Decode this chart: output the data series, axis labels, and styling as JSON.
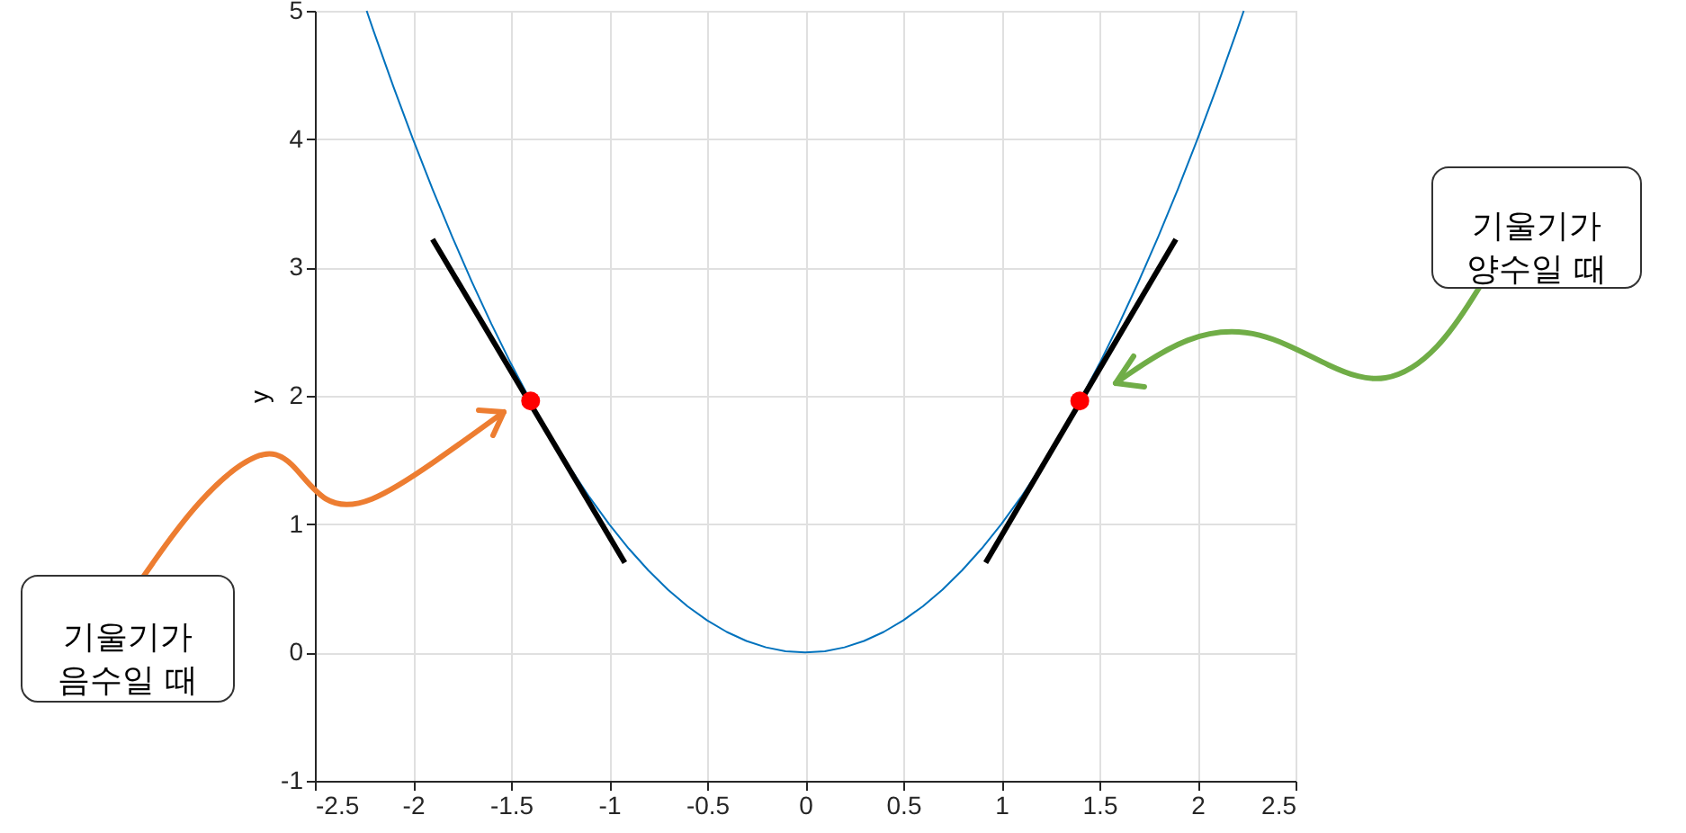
{
  "chart_data": {
    "type": "line",
    "ylabel": "y",
    "xlim": [
      -2.5,
      2.5
    ],
    "ylim": [
      -1,
      5
    ],
    "xticks": [
      -2.5,
      -2,
      -1.5,
      -1,
      -0.5,
      0,
      0.5,
      1,
      1.5,
      2,
      2.5
    ],
    "yticks": [
      -1,
      0,
      1,
      2,
      3,
      4,
      5
    ],
    "grid": true,
    "marker": "none",
    "line_style": "solid",
    "series": [
      {
        "color": "#0072bd",
        "x": [
          -2.236,
          -2.2,
          -2.1,
          -2.0,
          -1.9,
          -1.8,
          -1.7,
          -1.6,
          -1.5,
          -1.4,
          -1.3,
          -1.2,
          -1.1,
          -1.0,
          -0.9,
          -0.8,
          -0.7,
          -0.6,
          -0.5,
          -0.4,
          -0.3,
          -0.2,
          -0.1,
          0,
          0.1,
          0.2,
          0.3,
          0.4,
          0.5,
          0.6,
          0.7,
          0.8,
          0.9,
          1.0,
          1.1,
          1.2,
          1.3,
          1.4,
          1.5,
          1.6,
          1.7,
          1.8,
          1.9,
          2.0,
          2.1,
          2.2,
          2.236
        ],
        "values": [
          5.0,
          4.84,
          4.41,
          4.0,
          3.61,
          3.24,
          2.89,
          2.56,
          2.25,
          1.96,
          1.69,
          1.44,
          1.21,
          1.0,
          0.81,
          0.64,
          0.49,
          0.36,
          0.25,
          0.16,
          0.09,
          0.04,
          0.01,
          0,
          0.01,
          0.04,
          0.09,
          0.16,
          0.25,
          0.36,
          0.49,
          0.64,
          0.81,
          1.0,
          1.21,
          1.44,
          1.69,
          1.96,
          2.25,
          2.56,
          2.89,
          3.24,
          3.61,
          4.0,
          4.41,
          4.84,
          5.0
        ]
      },
      {
        "color": "#000000",
        "x": [
          -1.9,
          -0.92
        ],
        "values": [
          3.22,
          0.7
        ]
      },
      {
        "color": "#000000",
        "x": [
          0.92,
          1.89
        ],
        "values": [
          0.7,
          3.22
        ]
      },
      {
        "type": "scatter",
        "color": "#ff0000",
        "marker": "circle",
        "x": [
          -1.4,
          1.4
        ],
        "values": [
          1.96,
          1.96
        ]
      }
    ],
    "annotations": [
      "기울기가\n음수일 때",
      "기울기가\n양수일 때"
    ]
  }
}
